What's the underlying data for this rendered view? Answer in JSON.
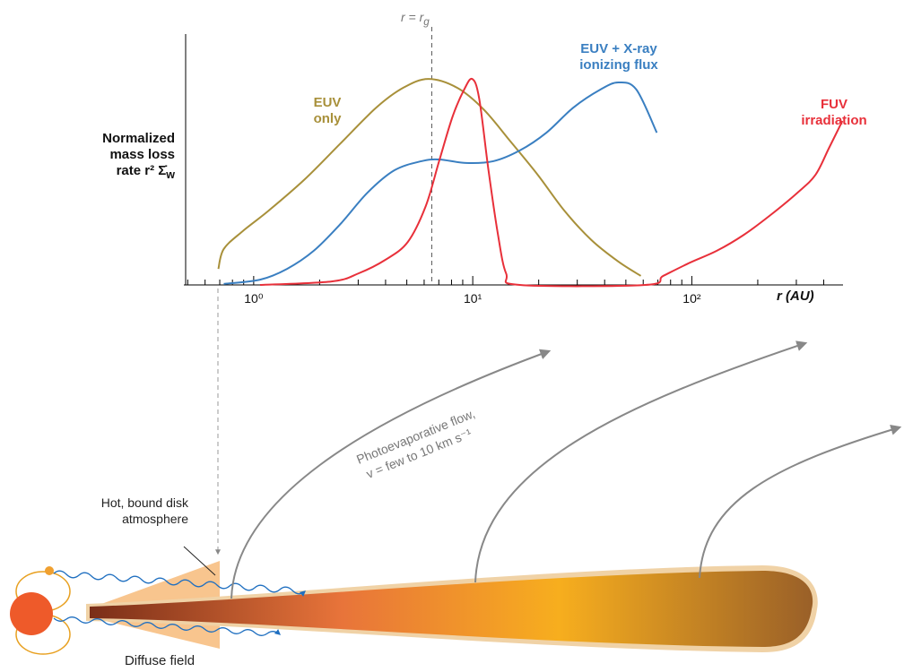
{
  "chart_data": {
    "type": "line",
    "annotation": {
      "x": 6.5,
      "label": "r = r",
      "subscript": "g"
    },
    "ylabel": "Normalized\nmass loss\nrate r² Σ̇",
    "ylabel_subscript": "w",
    "xlabel": "r (AU)",
    "log_x": true,
    "xlim": [
      0.48,
      490
    ],
    "ylim": [
      0,
      1
    ],
    "xticks": [
      {
        "value": 1,
        "label": "10⁰"
      },
      {
        "value": 10,
        "label": "10¹"
      },
      {
        "value": 100,
        "label": "10²"
      }
    ],
    "xticks_minor": [
      0.5,
      0.6,
      0.7,
      0.8,
      0.9,
      2,
      3,
      4,
      5,
      6,
      7,
      8,
      9,
      20,
      30,
      40,
      50,
      60,
      70,
      80,
      90,
      200,
      300,
      400
    ],
    "series": [
      {
        "name": "EUV\nonly",
        "color": "#a8903a",
        "x": [
          0.69,
          0.73,
          0.89,
          1.17,
          1.71,
          2.49,
          3.63,
          4.82,
          6.28,
          8.48,
          11.2,
          14.9,
          19.8,
          26.2,
          34.8,
          46.2,
          58.5
        ],
        "values": [
          0.064,
          0.143,
          0.214,
          0.296,
          0.421,
          0.564,
          0.707,
          0.786,
          0.821,
          0.786,
          0.7,
          0.571,
          0.439,
          0.296,
          0.179,
          0.093,
          0.036
        ]
      },
      {
        "name": "EUV + X-ray\nionizing flux",
        "color": "#3a7fc1",
        "x": [
          0.73,
          1.07,
          1.42,
          1.88,
          2.49,
          3.31,
          4.39,
          5.82,
          7.02,
          9.31,
          12.4,
          16.4,
          21.7,
          28.8,
          38.3,
          46.2,
          55.8,
          69.2
        ],
        "values": [
          0.004,
          0.021,
          0.064,
          0.136,
          0.243,
          0.368,
          0.457,
          0.493,
          0.5,
          0.486,
          0.493,
          0.536,
          0.607,
          0.707,
          0.779,
          0.807,
          0.779,
          0.607
        ]
      },
      {
        "name": "FUV\nirradiation",
        "color": "#e8303a",
        "x": [
          1.07,
          2.27,
          3.01,
          3.99,
          5.05,
          6.1,
          7.02,
          8.09,
          9.14,
          9.95,
          10.7,
          11.8,
          13.0,
          14.2,
          16.4,
          61.3,
          74.0,
          98.2,
          130,
          173,
          229,
          304,
          367,
          423,
          487
        ],
        "values": [
          0,
          0.014,
          0.046,
          0.1,
          0.171,
          0.314,
          0.493,
          0.671,
          0.779,
          0.821,
          0.743,
          0.457,
          0.207,
          0.046,
          0,
          0,
          0.036,
          0.089,
          0.136,
          0.2,
          0.279,
          0.368,
          0.439,
          0.546,
          0.654
        ]
      }
    ]
  },
  "diagram": {
    "flow_label": [
      "Photoevaporative flow,",
      "v = few to 10 km s⁻¹"
    ],
    "atmosphere_label": "Hot, bound disk\natmosphere",
    "diffuse_label": "Diffuse field"
  }
}
